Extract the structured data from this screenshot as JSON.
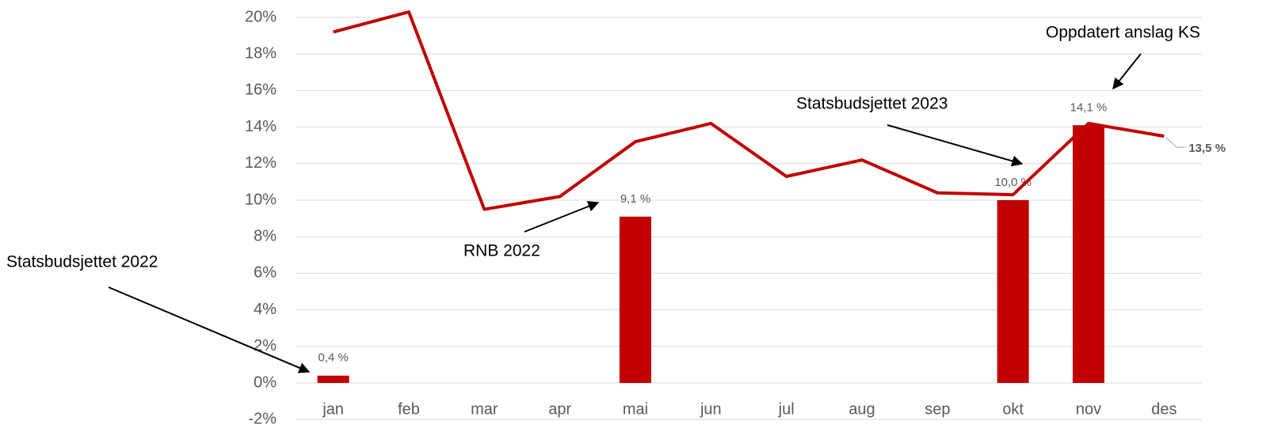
{
  "chart_data": {
    "type": "bar-line",
    "categories": [
      "jan",
      "feb",
      "mar",
      "apr",
      "mai",
      "jun",
      "jul",
      "aug",
      "sep",
      "okt",
      "nov",
      "des"
    ],
    "series": [
      {
        "type": "bar",
        "color": "#c00000",
        "values": [
          0.4,
          null,
          null,
          null,
          9.1,
          null,
          null,
          null,
          null,
          10.0,
          14.1,
          null
        ],
        "value_labels": [
          "0,4 %",
          null,
          null,
          null,
          "9,1 %",
          null,
          null,
          null,
          null,
          "10,0 %",
          "14,1 %",
          null
        ]
      },
      {
        "type": "line",
        "color": "#c00000",
        "values": [
          19.2,
          20.3,
          9.5,
          10.2,
          13.2,
          14.2,
          11.3,
          12.2,
          10.4,
          10.3,
          14.2,
          13.5
        ],
        "value_labels": [
          null,
          null,
          null,
          null,
          null,
          null,
          null,
          null,
          null,
          null,
          null,
          "13,5 %"
        ]
      }
    ],
    "ylim": [
      -2,
      20
    ],
    "yticks": [
      {
        "value": -2,
        "label": "-2%"
      },
      {
        "value": 0,
        "label": "0%"
      },
      {
        "value": 2,
        "label": "2%"
      },
      {
        "value": 4,
        "label": "4%"
      },
      {
        "value": 6,
        "label": "6%"
      },
      {
        "value": 8,
        "label": "8%"
      },
      {
        "value": 10,
        "label": "10%"
      },
      {
        "value": 12,
        "label": "12%"
      },
      {
        "value": 14,
        "label": "14%"
      },
      {
        "value": 16,
        "label": "16%"
      },
      {
        "value": 18,
        "label": "18%"
      },
      {
        "value": 20,
        "label": "20%"
      }
    ],
    "grid": true,
    "annotations": [
      "Statsbudsjettet 2022",
      "RNB 2022",
      "Statsbudsjettet 2023",
      "Oppdatert anslag KS"
    ]
  }
}
